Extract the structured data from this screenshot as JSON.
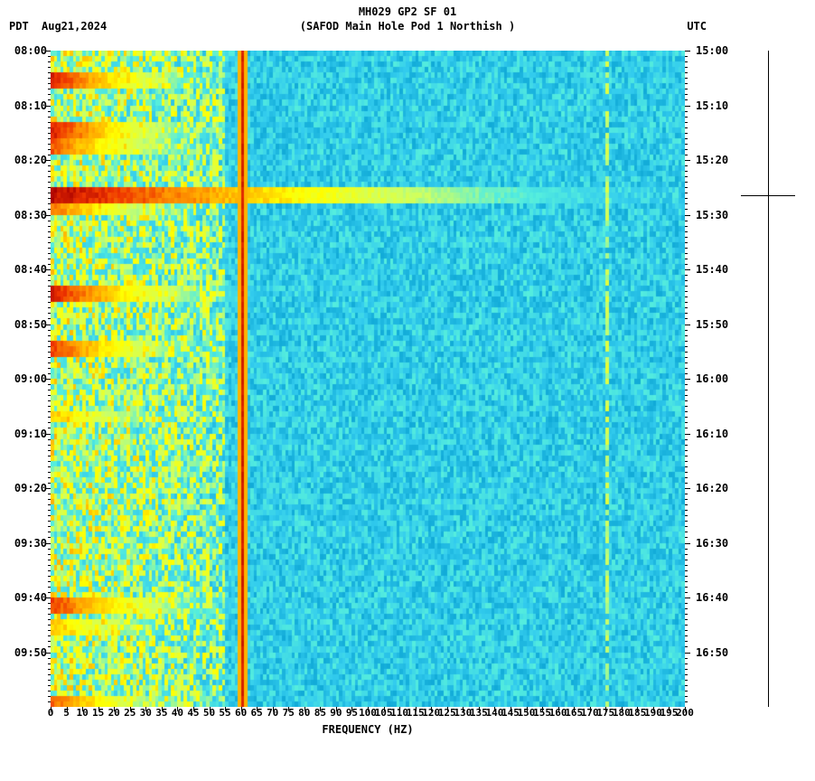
{
  "header": {
    "title": "MH029 GP2 SF 01",
    "subtitle": "(SAFOD Main Hole Pod 1 Northish )",
    "tz_left": "PDT",
    "date_left": "Aug21,2024",
    "tz_right": "UTC"
  },
  "axes": {
    "xlabel": "FREQUENCY (HZ)",
    "x_min": 0,
    "x_max": 200,
    "x_tick_step": 5,
    "y_left_ticks": [
      "08:00",
      "08:10",
      "08:20",
      "08:30",
      "08:40",
      "08:50",
      "09:00",
      "09:10",
      "09:20",
      "09:30",
      "09:40",
      "09:50"
    ],
    "y_right_ticks": [
      "15:00",
      "15:10",
      "15:20",
      "15:30",
      "15:40",
      "15:50",
      "16:00",
      "16:10",
      "16:20",
      "16:30",
      "16:40",
      "16:50"
    ],
    "y_minor_per_major": 10,
    "label_fontsize": 12,
    "tick_fontsize": 11
  },
  "spectrogram": {
    "type": "heatmap",
    "time_rows": 120,
    "freq_cols": 200,
    "background_noise_min": 0.35,
    "background_noise_max": 0.55,
    "low_freq_elevated_cutoff_hz": 55,
    "low_freq_noise_min": 0.4,
    "low_freq_noise_max": 0.75,
    "vertical_line_hz": 60,
    "vertical_line_intensity": 0.97,
    "faint_vertical_hz": 175,
    "faint_vertical_intensity": 0.7,
    "event_bands": [
      {
        "minute_start": 4.5,
        "minute_end": 5.5,
        "max_hz": 60,
        "intensity": 0.95
      },
      {
        "minute_start": 13.5,
        "minute_end": 14.5,
        "max_hz": 60,
        "intensity": 0.95
      },
      {
        "minute_start": 16.5,
        "minute_end": 17.5,
        "max_hz": 60,
        "intensity": 0.9
      },
      {
        "minute_start": 25.0,
        "minute_end": 27.0,
        "max_hz": 200,
        "intensity": 0.98
      },
      {
        "minute_start": 28.0,
        "minute_end": 29.0,
        "max_hz": 60,
        "intensity": 0.88
      },
      {
        "minute_start": 43.0,
        "minute_end": 44.5,
        "max_hz": 70,
        "intensity": 0.95
      },
      {
        "minute_start": 53.5,
        "minute_end": 54.5,
        "max_hz": 60,
        "intensity": 0.92
      },
      {
        "minute_start": 66.0,
        "minute_end": 67.0,
        "max_hz": 60,
        "intensity": 0.8
      },
      {
        "minute_start": 100.5,
        "minute_end": 101.5,
        "max_hz": 65,
        "intensity": 0.92
      },
      {
        "minute_start": 104.5,
        "minute_end": 105.5,
        "max_hz": 55,
        "intensity": 0.8
      },
      {
        "minute_start": 118.5,
        "minute_end": 119.5,
        "max_hz": 55,
        "intensity": 0.9
      }
    ],
    "faint_horizontal": [
      {
        "minute": 32,
        "max_hz": 120,
        "intensity": 0.55
      },
      {
        "minute": 72,
        "max_hz": 90,
        "intensity": 0.5
      }
    ],
    "colormap": [
      {
        "t": 0.0,
        "c": "#006080"
      },
      {
        "t": 0.3,
        "c": "#0099cc"
      },
      {
        "t": 0.45,
        "c": "#33ccee"
      },
      {
        "t": 0.55,
        "c": "#55eedd"
      },
      {
        "t": 0.65,
        "c": "#ccff66"
      },
      {
        "t": 0.75,
        "c": "#ffff00"
      },
      {
        "t": 0.85,
        "c": "#ff9900"
      },
      {
        "t": 0.93,
        "c": "#ee3300"
      },
      {
        "t": 1.0,
        "c": "#aa0000"
      }
    ]
  },
  "side_scale": {
    "tick_fracs": [
      0.22
    ]
  },
  "styling": {
    "background_color": "#ffffff",
    "text_color": "#000000",
    "font_family": "monospace"
  }
}
